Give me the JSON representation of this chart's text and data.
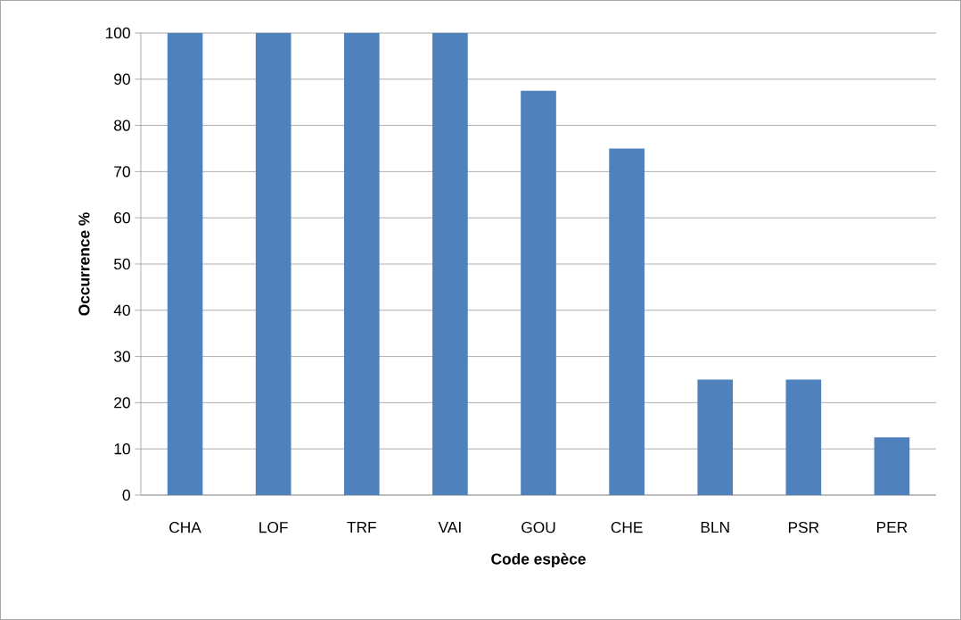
{
  "chart_data": {
    "type": "bar",
    "xlabel": "Code espèce",
    "ylabel": "Occurrence %",
    "categories": [
      "CHA",
      "LOF",
      "TRF",
      "VAI",
      "GOU",
      "CHE",
      "BLN",
      "PSR",
      "PER"
    ],
    "values": [
      100,
      100,
      100,
      100,
      87.5,
      75,
      25,
      25,
      12.5
    ],
    "color": "#4f81bd",
    "ylim": [
      0,
      100
    ],
    "yticks": [
      0,
      10,
      20,
      30,
      40,
      50,
      60,
      70,
      80,
      90,
      100
    ],
    "grid": "y"
  }
}
